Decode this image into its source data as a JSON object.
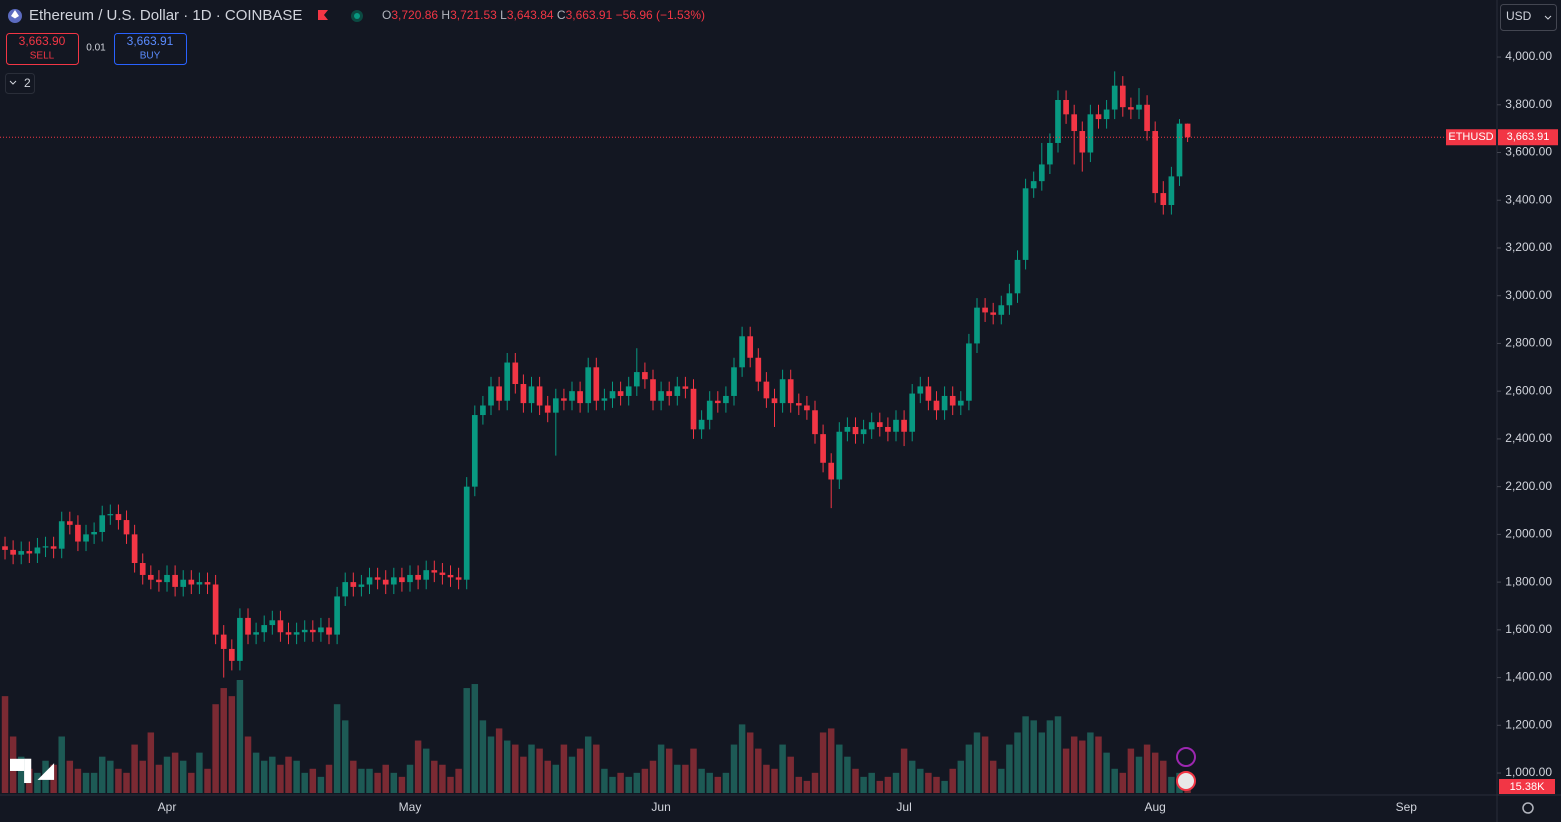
{
  "header": {
    "title": "Ethereum / U.S. Dollar · 1D · COINBASE",
    "ohlc": [
      {
        "key": "O",
        "value": "3,720.86"
      },
      {
        "key": "H",
        "value": "3,721.53"
      },
      {
        "key": "L",
        "value": "3,643.84"
      },
      {
        "key": "C",
        "value": "3,663.91"
      }
    ],
    "change": "−56.96 (−1.53%)",
    "sell_price": "3,663.90",
    "sell": "SELL",
    "spread": "0.01",
    "buy_price": "3,663.91",
    "buy": "BUY",
    "indicators": "2",
    "currency": "USD"
  },
  "chart_data": {
    "type": "candlestick",
    "open": [
      1950,
      1935,
      1915,
      1930,
      1920,
      1945,
      1950,
      1940,
      2055,
      2040,
      1970,
      2000,
      2010,
      2080,
      2085,
      2060,
      2000,
      1880,
      1830,
      1810,
      1800,
      1830,
      1780,
      1810,
      1790,
      1800,
      1790,
      1580,
      1520,
      1470,
      1650,
      1580,
      1590,
      1620,
      1640,
      1590,
      1580,
      1590,
      1600,
      1590,
      1610,
      1580,
      1740,
      1800,
      1780,
      1790,
      1820,
      1810,
      1790,
      1820,
      1800,
      1830,
      1810,
      1850,
      1840,
      1830,
      1820,
      1810,
      2200,
      2500,
      2540,
      2620,
      2560,
      2720,
      2630,
      2550,
      2620,
      2540,
      2510,
      2570,
      2560,
      2600,
      2550,
      2700,
      2560,
      2570,
      2600,
      2580,
      2620,
      2680,
      2650,
      2560,
      2600,
      2580,
      2620,
      2610,
      2440,
      2480,
      2560,
      2550,
      2580,
      2700,
      2830,
      2740,
      2640,
      2570,
      2550,
      2650,
      2550,
      2540,
      2520,
      2420,
      2300,
      2230,
      2430,
      2450,
      2420,
      2440,
      2470,
      2450,
      2430,
      2480,
      2430,
      2590,
      2620,
      2560,
      2520,
      2580,
      2540,
      2560,
      2800,
      2950,
      2930,
      2920,
      2960,
      3010,
      3150,
      3450,
      3480,
      3550,
      3640,
      3820,
      3760,
      3690,
      3600,
      3760,
      3740,
      3780,
      3880,
      3790,
      3780,
      3800,
      3690,
      3430,
      3380,
      3500,
      3720.86
    ],
    "high": [
      1990,
      1975,
      1970,
      1970,
      1985,
      1990,
      1990,
      2095,
      2095,
      2080,
      2040,
      2050,
      2120,
      2125,
      2125,
      2100,
      2040,
      1920,
      1870,
      1850,
      1870,
      1870,
      1850,
      1850,
      1840,
      1840,
      1830,
      1620,
      1560,
      1690,
      1690,
      1630,
      1660,
      1680,
      1680,
      1630,
      1630,
      1640,
      1640,
      1650,
      1650,
      1780,
      1840,
      1840,
      1830,
      1860,
      1860,
      1850,
      1860,
      1860,
      1870,
      1870,
      1890,
      1890,
      1880,
      1870,
      1860,
      2240,
      2540,
      2580,
      2660,
      2660,
      2760,
      2760,
      2670,
      2660,
      2660,
      2580,
      2610,
      2610,
      2640,
      2640,
      2740,
      2740,
      2610,
      2640,
      2640,
      2660,
      2780,
      2720,
      2690,
      2640,
      2640,
      2660,
      2660,
      2650,
      2520,
      2600,
      2600,
      2620,
      2740,
      2870,
      2870,
      2780,
      2680,
      2610,
      2690,
      2690,
      2590,
      2580,
      2560,
      2460,
      2340,
      2470,
      2490,
      2490,
      2480,
      2510,
      2510,
      2490,
      2520,
      2520,
      2630,
      2660,
      2660,
      2600,
      2620,
      2620,
      2600,
      2840,
      2990,
      2990,
      2970,
      3000,
      3050,
      3190,
      3490,
      3520,
      3640,
      3680,
      3860,
      3860,
      3800,
      3730,
      3800,
      3800,
      3820,
      3940,
      3920,
      3830,
      3870,
      3840,
      3730,
      3480,
      3540,
      3740,
      3721.53
    ],
    "low": [
      1895,
      1875,
      1875,
      1880,
      1880,
      1905,
      1900,
      1900,
      2000,
      1930,
      1930,
      1960,
      1970,
      2040,
      2020,
      1960,
      1840,
      1790,
      1770,
      1760,
      1760,
      1740,
      1740,
      1750,
      1750,
      1750,
      1540,
      1400,
      1430,
      1430,
      1540,
      1540,
      1550,
      1580,
      1550,
      1540,
      1540,
      1550,
      1550,
      1550,
      1540,
      1540,
      1700,
      1740,
      1740,
      1750,
      1770,
      1750,
      1750,
      1760,
      1760,
      1770,
      1770,
      1800,
      1790,
      1780,
      1770,
      1770,
      2160,
      2460,
      2500,
      2520,
      2520,
      2590,
      2510,
      2510,
      2500,
      2470,
      2330,
      2520,
      2520,
      2510,
      2510,
      2520,
      2520,
      2530,
      2540,
      2540,
      2580,
      2610,
      2520,
      2520,
      2540,
      2540,
      2570,
      2400,
      2400,
      2440,
      2510,
      2510,
      2540,
      2660,
      2700,
      2600,
      2530,
      2450,
      2510,
      2510,
      2500,
      2480,
      2380,
      2260,
      2110,
      2190,
      2390,
      2380,
      2380,
      2400,
      2410,
      2390,
      2390,
      2370,
      2390,
      2550,
      2520,
      2480,
      2480,
      2500,
      2500,
      2520,
      2760,
      2890,
      2880,
      2880,
      2920,
      2970,
      3110,
      3410,
      3440,
      3510,
      3600,
      3720,
      3550,
      3520,
      3560,
      3700,
      3700,
      3740,
      3750,
      3740,
      3740,
      3650,
      3390,
      3340,
      3340,
      3460,
      3643.84
    ],
    "close": [
      1935,
      1915,
      1930,
      1920,
      1945,
      1950,
      1940,
      2055,
      2040,
      1970,
      2000,
      2010,
      2080,
      2085,
      2060,
      2000,
      1880,
      1830,
      1810,
      1800,
      1830,
      1780,
      1810,
      1790,
      1800,
      1790,
      1580,
      1520,
      1470,
      1650,
      1580,
      1590,
      1620,
      1640,
      1590,
      1580,
      1590,
      1600,
      1590,
      1610,
      1580,
      1740,
      1800,
      1780,
      1790,
      1820,
      1810,
      1790,
      1820,
      1800,
      1830,
      1810,
      1850,
      1840,
      1830,
      1820,
      1810,
      2200,
      2500,
      2540,
      2620,
      2560,
      2720,
      2630,
      2550,
      2620,
      2540,
      2510,
      2570,
      2560,
      2600,
      2550,
      2700,
      2560,
      2570,
      2600,
      2580,
      2620,
      2680,
      2650,
      2560,
      2600,
      2580,
      2620,
      2610,
      2440,
      2480,
      2560,
      2550,
      2580,
      2700,
      2830,
      2740,
      2640,
      2570,
      2550,
      2650,
      2550,
      2540,
      2520,
      2420,
      2300,
      2230,
      2430,
      2450,
      2420,
      2440,
      2470,
      2450,
      2430,
      2480,
      2430,
      2590,
      2620,
      2560,
      2520,
      2580,
      2540,
      2560,
      2800,
      2950,
      2930,
      2920,
      2960,
      3010,
      3150,
      3450,
      3480,
      3550,
      3640,
      3820,
      3760,
      3690,
      3600,
      3760,
      3740,
      3780,
      3880,
      3790,
      3780,
      3800,
      3690,
      3430,
      3380,
      3500,
      3720.86,
      3663.91
    ],
    "volume": [
      120000,
      70000,
      45000,
      30000,
      25000,
      40000,
      35000,
      70000,
      40000,
      30000,
      25000,
      25000,
      45000,
      40000,
      30000,
      25000,
      60000,
      40000,
      75000,
      35000,
      45000,
      50000,
      40000,
      25000,
      50000,
      30000,
      110000,
      130000,
      120000,
      140000,
      70000,
      50000,
      40000,
      45000,
      35000,
      45000,
      40000,
      25000,
      30000,
      20000,
      35000,
      110000,
      90000,
      40000,
      30000,
      30000,
      25000,
      35000,
      25000,
      20000,
      35000,
      65000,
      55000,
      40000,
      35000,
      20000,
      30000,
      130000,
      135000,
      90000,
      70000,
      80000,
      65000,
      60000,
      45000,
      60000,
      55000,
      40000,
      35000,
      60000,
      45000,
      55000,
      70000,
      60000,
      30000,
      20000,
      25000,
      20000,
      25000,
      30000,
      40000,
      60000,
      55000,
      35000,
      35000,
      55000,
      30000,
      25000,
      20000,
      25000,
      60000,
      85000,
      75000,
      55000,
      35000,
      30000,
      60000,
      45000,
      20000,
      15000,
      25000,
      75000,
      80000,
      60000,
      45000,
      30000,
      20000,
      25000,
      15000,
      20000,
      25000,
      55000,
      40000,
      30000,
      25000,
      20000,
      15000,
      30000,
      40000,
      60000,
      75000,
      70000,
      40000,
      30000,
      60000,
      75000,
      95000,
      90000,
      75000,
      90000,
      95000,
      55000,
      70000,
      65000,
      75000,
      70000,
      50000,
      30000,
      25000,
      55000,
      45000,
      60000,
      50000,
      40000,
      20000,
      25000,
      15380
    ],
    "volume_last_label": "15.38K",
    "xlim": [
      -0.62,
      184.2
    ],
    "xticks": [
      {
        "value": 20,
        "label": "Apr"
      },
      {
        "value": 50,
        "label": "May"
      },
      {
        "value": 81,
        "label": "Jun"
      },
      {
        "value": 111,
        "label": "Jul"
      },
      {
        "value": 142,
        "label": "Aug"
      },
      {
        "value": 173,
        "label": "Sep"
      }
    ],
    "ylim": [
      908,
      4239
    ],
    "yticks": [
      {
        "value": 1000,
        "label": "1,000.00"
      },
      {
        "value": 1200,
        "label": "1,200.00"
      },
      {
        "value": 1400,
        "label": "1,400.00"
      },
      {
        "value": 1600,
        "label": "1,600.00"
      },
      {
        "value": 1800,
        "label": "1,800.00"
      },
      {
        "value": 2000,
        "label": "2,000.00"
      },
      {
        "value": 2200,
        "label": "2,200.00"
      },
      {
        "value": 2400,
        "label": "2,400.00"
      },
      {
        "value": 2600,
        "label": "2,600.00"
      },
      {
        "value": 2800,
        "label": "2,800.00"
      },
      {
        "value": 3000,
        "label": "3,000.00"
      },
      {
        "value": 3200,
        "label": "3,200.00"
      },
      {
        "value": 3400,
        "label": "3,400.00"
      },
      {
        "value": 3600,
        "label": "3,600.00"
      },
      {
        "value": 3800,
        "label": "3,800.00"
      },
      {
        "value": 4000,
        "label": "4,000.00"
      }
    ],
    "grid": false,
    "up_color": "#089981",
    "down_color": "#f23645",
    "up_volume_color": "#1d5a55",
    "down_volume_color": "#7b2a33",
    "price_line": {
      "symbol": "ETHUSD",
      "value": 3663.91,
      "label": "3,663.91"
    }
  }
}
